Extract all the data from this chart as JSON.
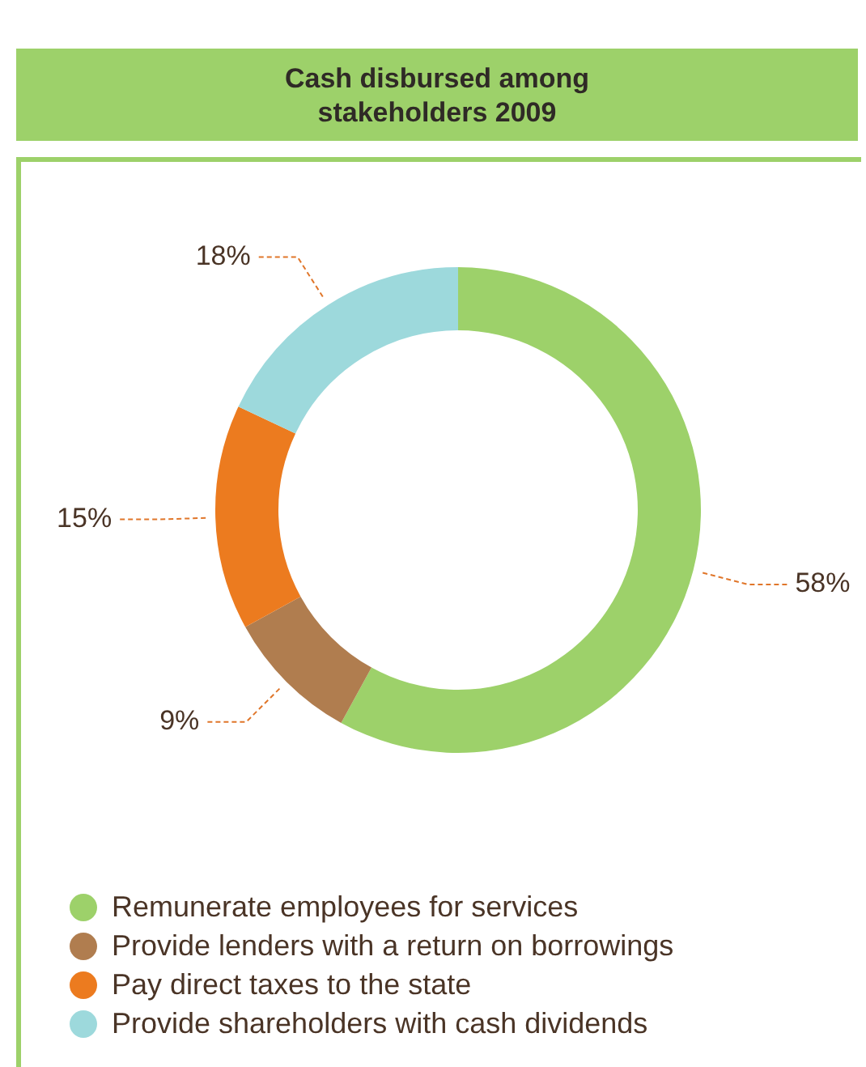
{
  "chart_data": {
    "type": "donut",
    "title": "Cash disbursed among stakeholders 2009",
    "categories": [
      "Remunerate employees for services",
      "Provide lenders with a return on borrowings",
      "Pay direct taxes to the state",
      "Provide shareholders with cash dividends"
    ],
    "values": [
      58,
      9,
      15,
      18
    ],
    "colors": [
      "#9dd16a",
      "#b07d4f",
      "#ec7b1f",
      "#9dd9dc"
    ],
    "value_labels": [
      "58%",
      "9%",
      "15%",
      "18%"
    ],
    "legend": "bottom"
  }
}
